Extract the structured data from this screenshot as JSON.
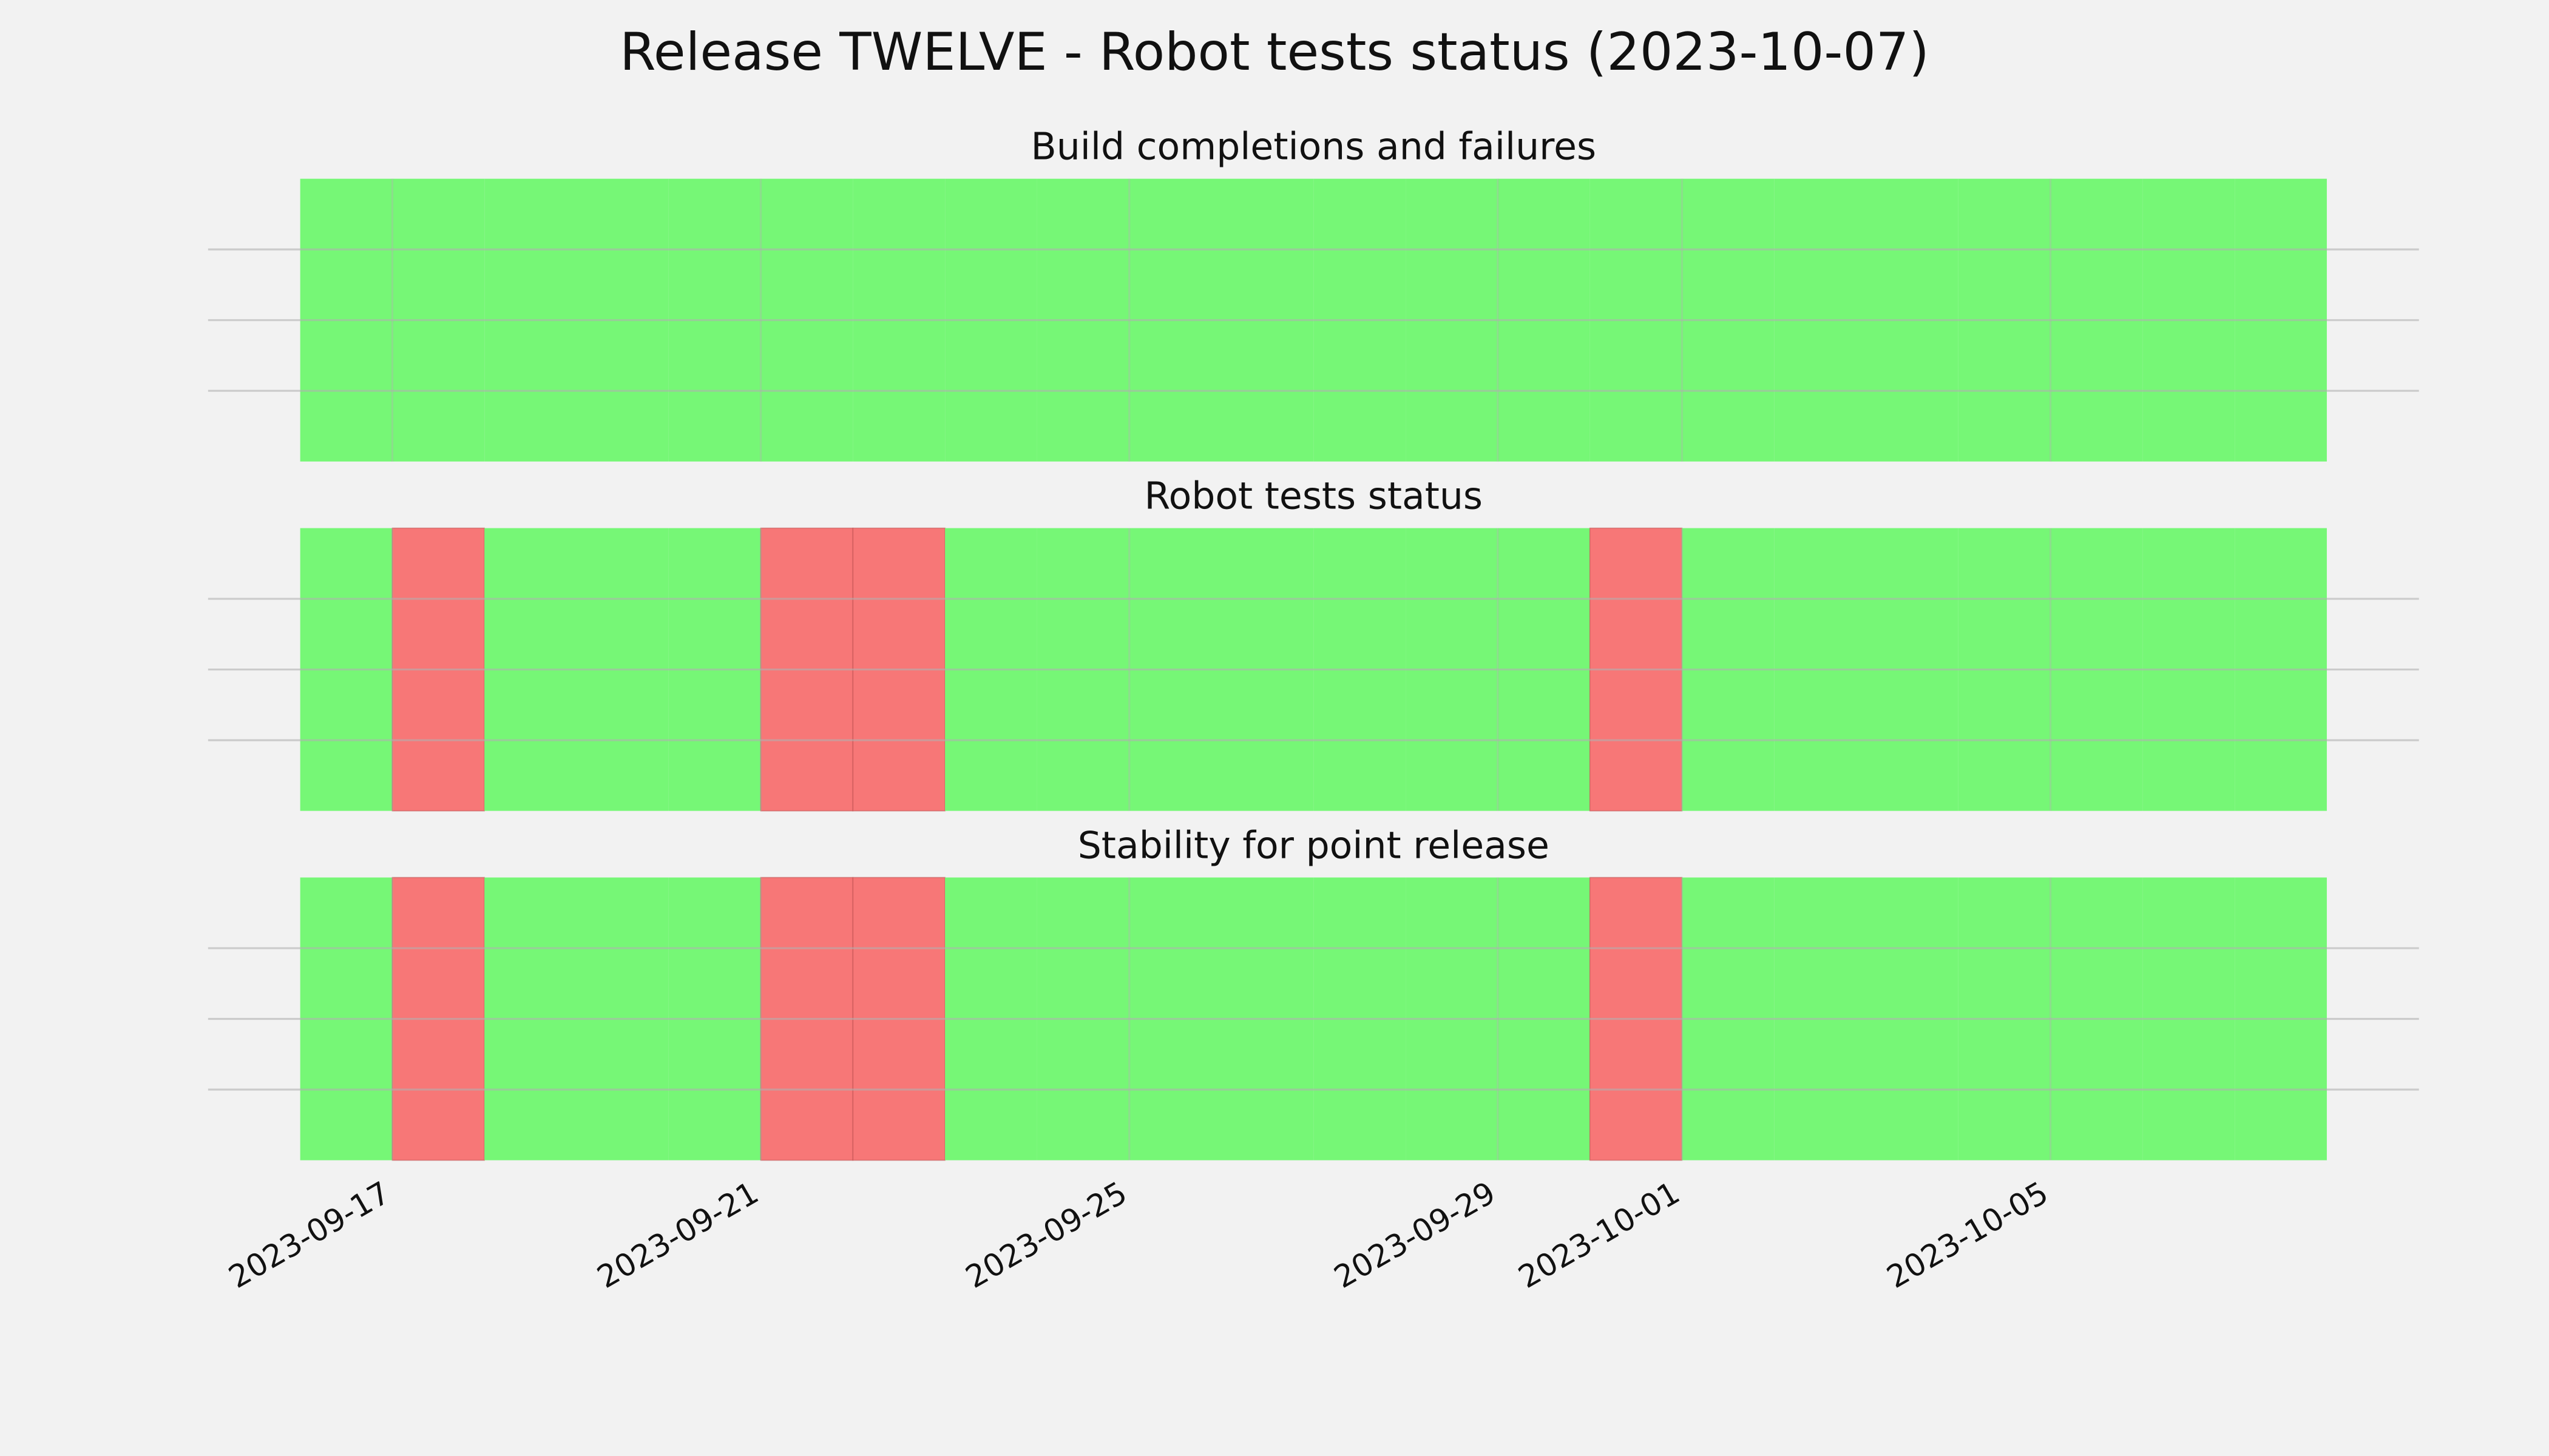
{
  "title": "Release TWELVE - Robot tests status (2023-10-07)",
  "x_axis": {
    "xlim": [
      "2023-09-15",
      "2023-10-09"
    ],
    "xticks": [
      "2023-09-17",
      "2023-09-21",
      "2023-09-25",
      "2023-09-29",
      "2023-10-01",
      "2023-10-05"
    ]
  },
  "chart_data": [
    {
      "type": "status",
      "title": "Build completions and failures",
      "categories": [
        "2023-09-16",
        "2023-09-17",
        "2023-09-18",
        "2023-09-19",
        "2023-09-20",
        "2023-09-21",
        "2023-09-22",
        "2023-09-23",
        "2023-09-24",
        "2023-09-25",
        "2023-09-26",
        "2023-09-27",
        "2023-09-28",
        "2023-09-29",
        "2023-09-30",
        "2023-10-01",
        "2023-10-02",
        "2023-10-03",
        "2023-10-04",
        "2023-10-05",
        "2023-10-06",
        "2023-10-07"
      ],
      "values": [
        1,
        1,
        1,
        1,
        1,
        1,
        1,
        1,
        1,
        1,
        1,
        1,
        1,
        1,
        1,
        1,
        1,
        1,
        1,
        1,
        1,
        1
      ],
      "pass_color": "#76f776",
      "fail_color": "#f77777",
      "ylim": [
        0,
        1
      ],
      "yticks": [
        0.25,
        0.5,
        0.75
      ],
      "grid": true
    },
    {
      "type": "status",
      "title": "Robot tests status",
      "categories": [
        "2023-09-16",
        "2023-09-17",
        "2023-09-18",
        "2023-09-19",
        "2023-09-20",
        "2023-09-21",
        "2023-09-22",
        "2023-09-23",
        "2023-09-24",
        "2023-09-25",
        "2023-09-26",
        "2023-09-27",
        "2023-09-28",
        "2023-09-29",
        "2023-09-30",
        "2023-10-01",
        "2023-10-02",
        "2023-10-03",
        "2023-10-04",
        "2023-10-05",
        "2023-10-06",
        "2023-10-07"
      ],
      "values": [
        1,
        0,
        1,
        1,
        1,
        0,
        0,
        1,
        1,
        1,
        1,
        1,
        1,
        1,
        0,
        1,
        1,
        1,
        1,
        1,
        1,
        1
      ],
      "pass_color": "#76f776",
      "fail_color": "#f77777",
      "ylim": [
        0,
        1
      ],
      "yticks": [
        0.25,
        0.5,
        0.75
      ],
      "grid": true
    },
    {
      "type": "status",
      "title": "Stability for point release",
      "categories": [
        "2023-09-16",
        "2023-09-17",
        "2023-09-18",
        "2023-09-19",
        "2023-09-20",
        "2023-09-21",
        "2023-09-22",
        "2023-09-23",
        "2023-09-24",
        "2023-09-25",
        "2023-09-26",
        "2023-09-27",
        "2023-09-28",
        "2023-09-29",
        "2023-09-30",
        "2023-10-01",
        "2023-10-02",
        "2023-10-03",
        "2023-10-04",
        "2023-10-05",
        "2023-10-06",
        "2023-10-07"
      ],
      "values": [
        1,
        0,
        1,
        1,
        1,
        0,
        0,
        1,
        1,
        1,
        1,
        1,
        1,
        1,
        0,
        1,
        1,
        1,
        1,
        1,
        1,
        1
      ],
      "pass_color": "#76f776",
      "fail_color": "#f77777",
      "ylim": [
        0,
        1
      ],
      "yticks": [
        0.25,
        0.5,
        0.75
      ],
      "grid": true
    }
  ]
}
